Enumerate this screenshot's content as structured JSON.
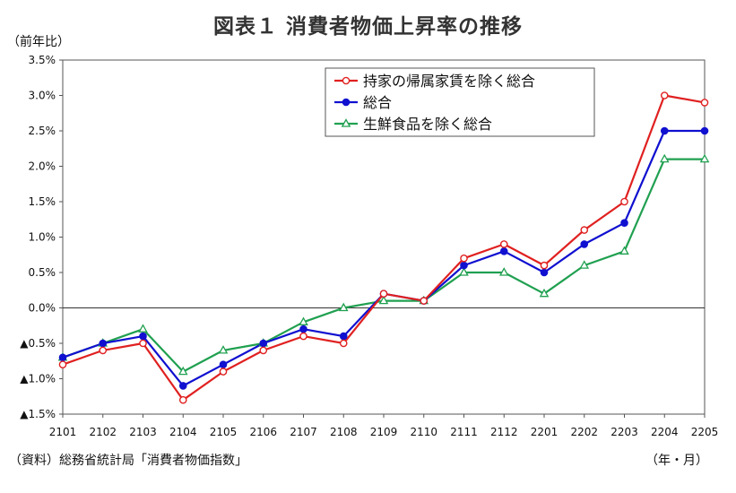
{
  "title": "図表１ 消費者物価上昇率の推移",
  "unit_label": "（前年比）",
  "source": "（資料）総務省統計局「消費者物価指数」",
  "x_unit_label": "（年・月）",
  "chart_data": {
    "type": "line",
    "title": "図表１ 消費者物価上昇率の推移",
    "ylabel": "（前年比）",
    "xlabel": "（年・月）",
    "categories": [
      "2101",
      "2102",
      "2103",
      "2104",
      "2105",
      "2106",
      "2107",
      "2108",
      "2109",
      "2110",
      "2111",
      "2112",
      "2201",
      "2202",
      "2203",
      "2204",
      "2205"
    ],
    "ylim": [
      -1.5,
      3.5
    ],
    "y_ticks": [
      3.5,
      3.0,
      2.5,
      2.0,
      1.5,
      1.0,
      0.5,
      0.0,
      -0.5,
      -1.0,
      -1.5
    ],
    "y_tick_labels": [
      "3.5%",
      "3.0%",
      "2.5%",
      "2.0%",
      "1.5%",
      "1.0%",
      "0.5%",
      "0.0%",
      "▲0.5%",
      "▲1.0%",
      "▲1.5%"
    ],
    "legend_position": "top-right",
    "series": [
      {
        "name": "持家の帰属家賃を除く総合",
        "color": "#e02020",
        "marker": "circle-open",
        "values": [
          -0.8,
          -0.6,
          -0.5,
          -1.3,
          -0.9,
          -0.6,
          -0.4,
          -0.5,
          0.2,
          0.1,
          0.7,
          0.9,
          0.6,
          1.1,
          1.5,
          3.0,
          2.9
        ]
      },
      {
        "name": "総合",
        "color": "#1010d0",
        "marker": "circle-filled",
        "values": [
          -0.7,
          -0.5,
          -0.4,
          -1.1,
          -0.8,
          -0.5,
          -0.3,
          -0.4,
          0.2,
          0.1,
          0.6,
          0.8,
          0.5,
          0.9,
          1.2,
          2.5,
          2.5
        ]
      },
      {
        "name": "生鮮食品を除く総合",
        "color": "#20a050",
        "marker": "triangle-open",
        "values": [
          -0.7,
          -0.5,
          -0.3,
          -0.9,
          -0.6,
          -0.5,
          -0.2,
          0.0,
          0.1,
          0.1,
          0.5,
          0.5,
          0.2,
          0.6,
          0.8,
          2.1,
          2.1
        ]
      }
    ]
  }
}
